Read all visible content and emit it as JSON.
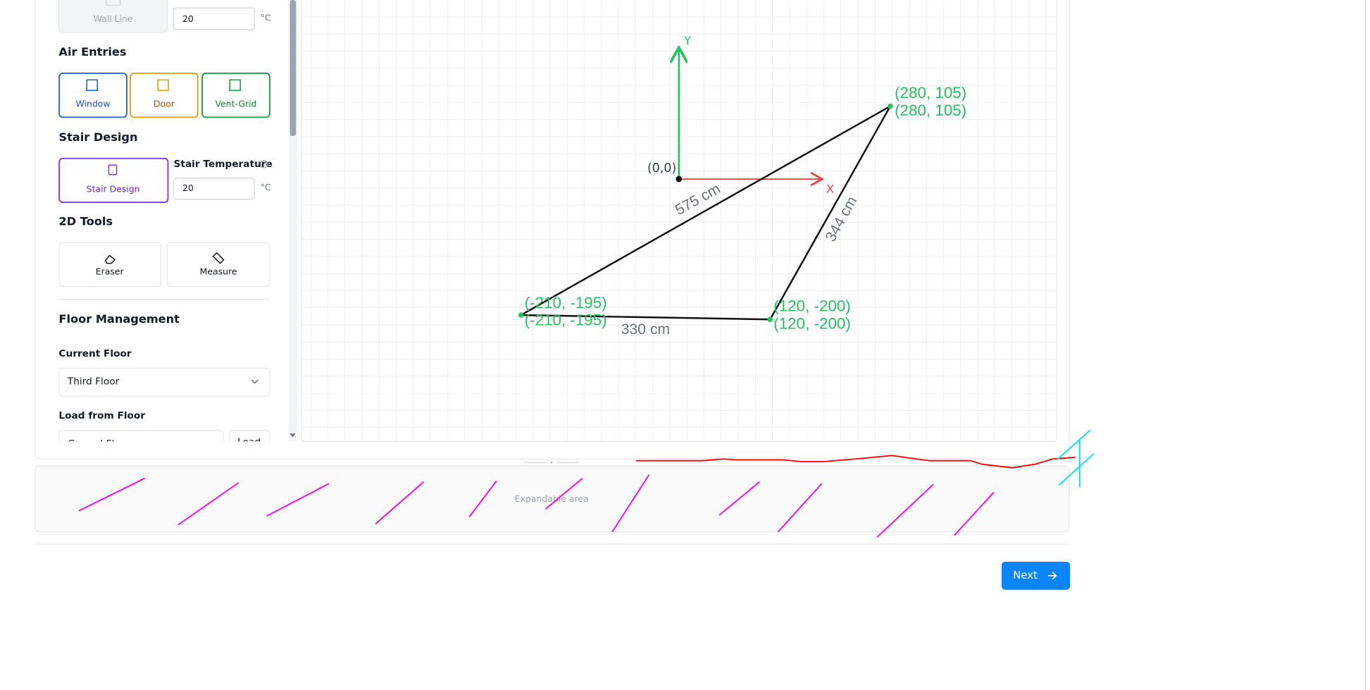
{
  "sidebar": {
    "wall_line": "Wall Line",
    "wall_temp_value": "20",
    "wall_temp_unit": "°C",
    "air_entries": {
      "title": "Air Entries",
      "buttons": [
        "Window",
        "Door",
        "Vent-Grid"
      ]
    },
    "stair": {
      "title": "Stair Design",
      "button": "Stair Design",
      "temp_label": "Stair Temperature",
      "temp_value": "20",
      "temp_unit": "°C"
    },
    "tools": {
      "title": "2D Tools",
      "buttons": [
        "Eraser",
        "Measure"
      ]
    },
    "floor": {
      "title": "Floor Management",
      "current_label": "Current Floor",
      "current_value": "Third Floor",
      "load_label": "Load from Floor",
      "load_value": "Ground Floor",
      "load_button": "Load"
    }
  },
  "canvas": {
    "origin": "(0,0)",
    "x_axis": "X",
    "y_axis": "Y",
    "points": [
      "(280, 105)",
      "(-210, -195)",
      "(120, -200)"
    ],
    "measurements": [
      "575 cm",
      "344 cm",
      "330 cm"
    ]
  },
  "expandable": "Expandable area",
  "next": "Next"
}
